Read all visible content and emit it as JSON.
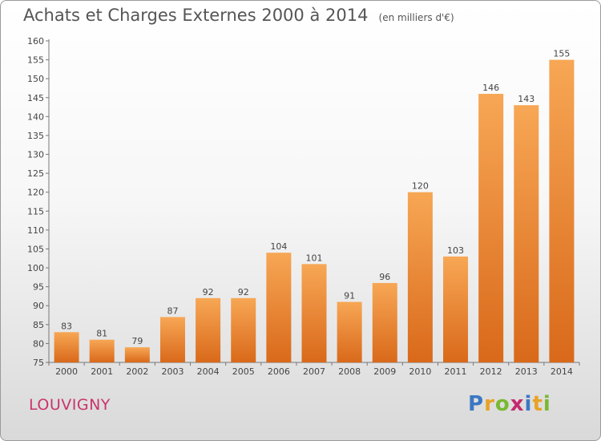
{
  "header": {
    "title": "Achats et Charges Externes 2000 à 2014",
    "unit": "(en milliers d'€)"
  },
  "footer": {
    "commune": "LOUVIGNY",
    "logo_letters": [
      "P",
      "r",
      "o",
      "x",
      "i",
      "t",
      "i"
    ],
    "logo_colors": [
      "#3b78c3",
      "#e8a226",
      "#7ab833",
      "#c42a6e",
      "#3b78c3",
      "#e8a226",
      "#7ab833"
    ]
  },
  "chart_data": {
    "type": "bar",
    "title": "Achats et Charges Externes 2000 à 2014",
    "categories": [
      "2000",
      "2001",
      "2002",
      "2003",
      "2004",
      "2005",
      "2006",
      "2007",
      "2008",
      "2009",
      "2010",
      "2011",
      "2012",
      "2013",
      "2014"
    ],
    "values": [
      83,
      81,
      79,
      87,
      92,
      92,
      104,
      101,
      91,
      96,
      120,
      103,
      146,
      143,
      155
    ],
    "ylim": [
      75,
      160
    ],
    "yticks": [
      75,
      80,
      85,
      90,
      95,
      100,
      105,
      110,
      115,
      120,
      125,
      130,
      135,
      140,
      145,
      150,
      155,
      160
    ],
    "xlabel": "",
    "ylabel": "",
    "grid": false,
    "bar_color": "#f08c2e"
  }
}
